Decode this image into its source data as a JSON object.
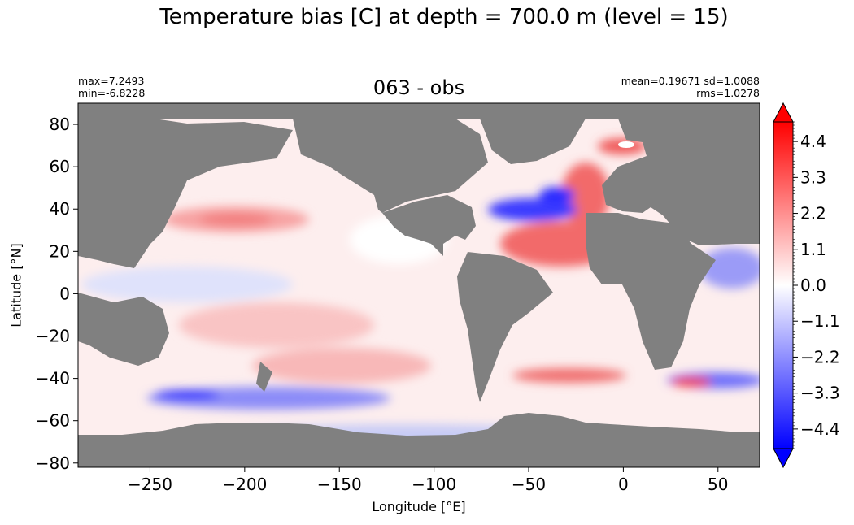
{
  "figure": {
    "suptitle": "Temperature bias [C] at depth = 700.0 m (level = 15)",
    "panel_title": "063 - obs",
    "stats_left": [
      "max=7.2493",
      "min=-6.8228"
    ],
    "stats_right": [
      "mean=0.19671 sd=1.0088",
      "rms=1.0278"
    ]
  },
  "colors": {
    "land": "#808080",
    "positive": "#ff0000",
    "negative": "#0000ff",
    "neutral": "#ffffff"
  },
  "chart_data": {
    "type": "heatmap",
    "title": "063 - obs",
    "xlabel": "Longitude [°E]",
    "ylabel": "Latitude [°N]",
    "xlim": [
      -288,
      72
    ],
    "ylim": [
      -82,
      90
    ],
    "xticks": [
      -250,
      -200,
      -150,
      -100,
      -50,
      0,
      50
    ],
    "yticks": [
      80,
      60,
      40,
      20,
      0,
      -20,
      -40,
      -60,
      -80
    ],
    "xtick_labels": [
      "−250",
      "−200",
      "−150",
      "−100",
      "−50",
      "0",
      "50"
    ],
    "ytick_labels": [
      "80",
      "60",
      "40",
      "20",
      "0",
      "−20",
      "−40",
      "−60",
      "−80"
    ],
    "colorbar": {
      "min": -5.0,
      "max": 5.0,
      "extend": "both",
      "cmap": "bwr",
      "ticks": [
        4.4,
        3.3,
        2.2,
        1.1,
        0.0,
        -1.1,
        -2.2,
        -3.3,
        -4.4
      ],
      "tick_labels": [
        "4.4",
        "3.3",
        "2.2",
        "1.1",
        "0.0",
        "−1.1",
        "−2.2",
        "−3.3",
        "−4.4"
      ]
    },
    "stats": {
      "max": 7.2493,
      "min": -6.8228,
      "mean": 0.19671,
      "sd": 1.0088,
      "rms": 1.0278
    }
  }
}
